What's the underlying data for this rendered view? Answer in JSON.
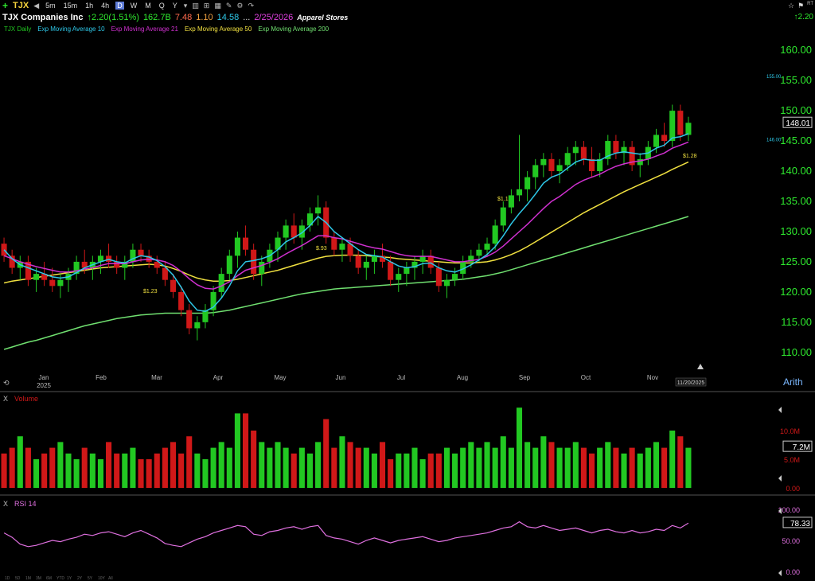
{
  "toolbar": {
    "symbol": "TJX",
    "intervals": [
      "5m",
      "15m",
      "1h",
      "4h",
      "D",
      "W",
      "M",
      "Q",
      "Y"
    ],
    "active_interval": "D"
  },
  "info": {
    "name": "TJX Companies Inc",
    "change": "↑2.20",
    "change_pct": "(1.51%)",
    "market_cap": "162.7B",
    "pe": "7.48",
    "v2": "1.10",
    "v3": "14.58",
    "ellipsis": "...",
    "date": "2/25/2026",
    "industry": "Apparel Stores"
  },
  "topright": {
    "rt": "RT",
    "change": "↑2.20"
  },
  "legend": {
    "daily": "TJX Daily",
    "ema10": "Exp Moving Average 10",
    "ema21": "Exp Moving Average 21",
    "ema50": "Exp Moving Average 50",
    "ema200": "Exp Moving Average 200"
  },
  "colors": {
    "up": "#22c822",
    "down": "#d01818",
    "ema10": "#2ec8e8",
    "ema21": "#d030d0",
    "ema50": "#f0e040",
    "ema200": "#70e070",
    "rsi": "#e070e0"
  },
  "chart_data": {
    "type": "candlestick",
    "ylim": [
      108,
      162
    ],
    "y_ticks": [
      "160.00",
      "155.00",
      "150.00",
      "145.00",
      "140.00",
      "135.00",
      "130.00",
      "125.00",
      "120.00",
      "115.00",
      "110.00"
    ],
    "x_months": [
      "Jan",
      "Feb",
      "Mar",
      "Apr",
      "May",
      "Jun",
      "Jul",
      "Aug",
      "Sep",
      "Oct",
      "Nov"
    ],
    "year_label": "2025",
    "last_price": "148.01",
    "marker_high": "155.00",
    "marker_low": "146.00",
    "date_marker": "11/20/2025",
    "scale_mode": "Arith",
    "annotations": [
      {
        "label": "$1.23",
        "month": "Mar"
      },
      {
        "label": "$.93",
        "month": "May"
      },
      {
        "label": "$1.1",
        "month": "Aug"
      },
      {
        "label": "$1.28",
        "month": "Nov"
      }
    ],
    "ohlc": [
      [
        128,
        129,
        125,
        126
      ],
      [
        126,
        127,
        123,
        124
      ],
      [
        124,
        126,
        122,
        125
      ],
      [
        125,
        126,
        121,
        122
      ],
      [
        122,
        124,
        120,
        123
      ],
      [
        123,
        125,
        121,
        122
      ],
      [
        122,
        124,
        120,
        121
      ],
      [
        121,
        123,
        119,
        122
      ],
      [
        122,
        124,
        120,
        123
      ],
      [
        123,
        126,
        122,
        125
      ],
      [
        125,
        127,
        123,
        124
      ],
      [
        124,
        126,
        122,
        125
      ],
      [
        125,
        127,
        123,
        126
      ],
      [
        126,
        128,
        124,
        125
      ],
      [
        125,
        126,
        123,
        124
      ],
      [
        124,
        126,
        122,
        125
      ],
      [
        125,
        128,
        124,
        127
      ],
      [
        127,
        128,
        125,
        126
      ],
      [
        126,
        127,
        124,
        125
      ],
      [
        125,
        126,
        123,
        124
      ],
      [
        124,
        125,
        121,
        122
      ],
      [
        122,
        123,
        119,
        120
      ],
      [
        120,
        121,
        116,
        117
      ],
      [
        117,
        118,
        113,
        114
      ],
      [
        114,
        116,
        112,
        115
      ],
      [
        115,
        118,
        114,
        117
      ],
      [
        117,
        121,
        116,
        120
      ],
      [
        120,
        124,
        119,
        123
      ],
      [
        123,
        127,
        122,
        126
      ],
      [
        126,
        130,
        124,
        129
      ],
      [
        129,
        131,
        126,
        127
      ],
      [
        127,
        128,
        122,
        123
      ],
      [
        123,
        126,
        121,
        125
      ],
      [
        125,
        128,
        124,
        127
      ],
      [
        127,
        130,
        125,
        129
      ],
      [
        129,
        132,
        127,
        131
      ],
      [
        131,
        133,
        128,
        129
      ],
      [
        129,
        132,
        127,
        131
      ],
      [
        131,
        134,
        130,
        133
      ],
      [
        133,
        136,
        131,
        134
      ],
      [
        134,
        135,
        128,
        129
      ],
      [
        129,
        130,
        126,
        127
      ],
      [
        127,
        129,
        125,
        128
      ],
      [
        128,
        129,
        125,
        126
      ],
      [
        126,
        127,
        123,
        124
      ],
      [
        124,
        126,
        122,
        125
      ],
      [
        125,
        127,
        123,
        126
      ],
      [
        126,
        128,
        124,
        125
      ],
      [
        125,
        126,
        121,
        122
      ],
      [
        122,
        124,
        120,
        123
      ],
      [
        123,
        125,
        121,
        124
      ],
      [
        124,
        126,
        122,
        125
      ],
      [
        125,
        127,
        123,
        126
      ],
      [
        126,
        127,
        123,
        124
      ],
      [
        124,
        125,
        120,
        121
      ],
      [
        121,
        123,
        119,
        122
      ],
      [
        122,
        124,
        121,
        123
      ],
      [
        123,
        126,
        122,
        125
      ],
      [
        125,
        127,
        124,
        126
      ],
      [
        126,
        128,
        125,
        127
      ],
      [
        127,
        129,
        126,
        128
      ],
      [
        128,
        132,
        127,
        131
      ],
      [
        131,
        135,
        130,
        134
      ],
      [
        134,
        137,
        133,
        136
      ],
      [
        136,
        146,
        135,
        137
      ],
      [
        137,
        140,
        135,
        139
      ],
      [
        139,
        142,
        137,
        141
      ],
      [
        141,
        143,
        139,
        142
      ],
      [
        142,
        143,
        139,
        140
      ],
      [
        140,
        142,
        138,
        141
      ],
      [
        141,
        144,
        140,
        143
      ],
      [
        143,
        145,
        141,
        144
      ],
      [
        144,
        145,
        141,
        142
      ],
      [
        142,
        144,
        139,
        140
      ],
      [
        140,
        143,
        139,
        142
      ],
      [
        142,
        146,
        141,
        145
      ],
      [
        145,
        146,
        142,
        143
      ],
      [
        143,
        145,
        141,
        144
      ],
      [
        144,
        145,
        140,
        141
      ],
      [
        141,
        143,
        139,
        142
      ],
      [
        142,
        145,
        141,
        144
      ],
      [
        144,
        147,
        143,
        146
      ],
      [
        146,
        148,
        144,
        145
      ],
      [
        145,
        151,
        144,
        150
      ],
      [
        150,
        151,
        145,
        146
      ],
      [
        146,
        149,
        145,
        148
      ]
    ],
    "ema10": [
      127,
      125.5,
      124.5,
      124,
      123.5,
      123,
      122.5,
      122.3,
      122.5,
      123.2,
      124,
      124.5,
      125,
      125.4,
      125,
      124.8,
      125.5,
      126,
      125.8,
      125.2,
      124.2,
      122.8,
      120.8,
      118.5,
      117,
      116.8,
      117.5,
      119,
      121,
      123.5,
      125,
      125.2,
      125.5,
      126,
      127,
      128.3,
      129,
      129.8,
      131,
      132.5,
      131.5,
      130,
      129,
      128,
      127,
      126.2,
      126,
      125.8,
      125,
      124.3,
      124,
      124.2,
      124.7,
      124.8,
      124,
      123.5,
      123.3,
      123.8,
      124.5,
      125.3,
      126.2,
      127.5,
      129.3,
      131.3,
      133,
      134.5,
      136.2,
      138,
      139,
      139.5,
      140.5,
      141.5,
      142,
      141.8,
      141.8,
      142.5,
      143,
      143.2,
      143,
      142.8,
      143,
      143.8,
      144.3,
      145.5,
      145.7,
      146.2
    ],
    "ema21": [
      126,
      125.5,
      125,
      124.6,
      124.2,
      123.9,
      123.6,
      123.3,
      123.3,
      123.5,
      123.8,
      124,
      124.4,
      124.7,
      124.7,
      124.7,
      125,
      125.3,
      125.4,
      125.3,
      125,
      124.4,
      123.4,
      122.2,
      121.2,
      120.6,
      120.5,
      121,
      121.7,
      122.7,
      123.6,
      124,
      124.4,
      124.9,
      125.5,
      126.3,
      127,
      127.7,
      128.5,
      129.3,
      129.3,
      129,
      128.8,
      128.4,
      128,
      127.6,
      127.3,
      127.1,
      126.7,
      126.3,
      126,
      125.9,
      125.9,
      125.9,
      125.6,
      125.3,
      125,
      125,
      125.2,
      125.4,
      125.9,
      126.6,
      127.6,
      128.8,
      130,
      131.2,
      132.5,
      133.8,
      135,
      135.8,
      136.8,
      137.8,
      138.5,
      139,
      139.5,
      140.2,
      140.8,
      141.2,
      141.5,
      141.7,
      142,
      142.5,
      143,
      143.8,
      144.3,
      144.8
    ],
    "ema50": [
      121.5,
      121.8,
      122,
      122.2,
      122.4,
      122.6,
      122.8,
      123,
      123.2,
      123.4,
      123.6,
      123.8,
      124,
      124.1,
      124.2,
      124.3,
      124.4,
      124.5,
      124.6,
      124.5,
      124.3,
      123.9,
      123.4,
      122.8,
      122.3,
      122,
      121.8,
      121.8,
      121.9,
      122.1,
      122.4,
      122.7,
      123,
      123.3,
      123.6,
      124,
      124.4,
      124.8,
      125.2,
      125.6,
      125.9,
      126,
      126.1,
      126.1,
      126.1,
      126,
      125.9,
      125.8,
      125.7,
      125.5,
      125.4,
      125.3,
      125.2,
      125.1,
      125,
      124.9,
      124.8,
      124.8,
      124.8,
      124.9,
      125,
      125.3,
      125.7,
      126.2,
      126.8,
      127.5,
      128.3,
      129.1,
      129.9,
      130.7,
      131.5,
      132.3,
      133.1,
      133.8,
      134.5,
      135.2,
      135.9,
      136.6,
      137.2,
      137.8,
      138.4,
      139,
      139.6,
      140.3,
      140.9,
      141.5
    ],
    "ema200": [
      110.5,
      110.9,
      111.3,
      111.7,
      112,
      112.4,
      112.8,
      113.2,
      113.6,
      114,
      114.4,
      114.7,
      115,
      115.3,
      115.6,
      115.8,
      116,
      116.2,
      116.3,
      116.4,
      116.5,
      116.5,
      116.5,
      116.5,
      116.5,
      116.5,
      116.6,
      116.8,
      117,
      117.3,
      117.6,
      117.9,
      118.2,
      118.5,
      118.8,
      119.1,
      119.4,
      119.7,
      119.9,
      120.1,
      120.3,
      120.5,
      120.6,
      120.7,
      120.8,
      120.9,
      121,
      121.1,
      121.2,
      121.3,
      121.4,
      121.5,
      121.6,
      121.7,
      121.8,
      121.9,
      122,
      122.1,
      122.3,
      122.5,
      122.7,
      123,
      123.3,
      123.7,
      124.1,
      124.5,
      124.9,
      125.3,
      125.7,
      126.1,
      126.5,
      126.9,
      127.3,
      127.7,
      128.1,
      128.5,
      128.9,
      129.3,
      129.7,
      130.1,
      130.5,
      130.9,
      131.3,
      131.7,
      132.1,
      132.5
    ]
  },
  "volume": {
    "title": "Volume",
    "close_x": "X",
    "ticks": [
      "10.0M",
      "5.0M",
      "0.00"
    ],
    "last": "7.2M",
    "values": [
      6,
      7,
      9,
      7,
      5,
      6,
      7,
      8,
      6,
      5,
      7,
      6,
      5,
      8,
      6,
      6,
      7,
      5,
      5,
      6,
      7,
      8,
      6,
      9,
      6,
      5,
      7,
      8,
      7,
      13,
      13,
      10,
      8,
      7,
      8,
      7,
      6,
      7,
      6,
      8,
      12,
      7,
      9,
      8,
      7,
      7,
      6,
      8,
      5,
      6,
      6,
      7,
      5,
      6,
      6,
      7,
      6,
      7,
      8,
      7,
      8,
      7,
      9,
      7,
      14,
      8,
      7,
      9,
      8,
      7,
      7,
      8,
      7,
      6,
      7,
      8,
      7,
      6,
      7,
      6,
      7,
      8,
      7,
      10,
      9,
      7
    ]
  },
  "rsi": {
    "title": "RSI 14",
    "close_x": "X",
    "ticks": [
      "100.00",
      "50.00",
      "0.00"
    ],
    "last": "78.33",
    "values": [
      62,
      55,
      44,
      40,
      42,
      46,
      50,
      48,
      52,
      55,
      60,
      58,
      62,
      64,
      60,
      56,
      62,
      66,
      60,
      54,
      45,
      42,
      40,
      46,
      52,
      56,
      62,
      66,
      70,
      74,
      72,
      60,
      58,
      64,
      66,
      70,
      72,
      68,
      72,
      74,
      58,
      54,
      52,
      48,
      44,
      50,
      54,
      50,
      46,
      50,
      52,
      54,
      56,
      52,
      48,
      50,
      54,
      56,
      58,
      60,
      62,
      66,
      70,
      72,
      80,
      72,
      70,
      74,
      70,
      66,
      68,
      70,
      66,
      62,
      66,
      68,
      64,
      62,
      66,
      62,
      64,
      68,
      66,
      74,
      70,
      78
    ]
  },
  "bottom_dates": [
    "1D",
    "5D",
    "1M",
    "3M",
    "6M",
    "YTD",
    "1Y",
    "2Y",
    "5Y",
    "10Y",
    "All"
  ]
}
